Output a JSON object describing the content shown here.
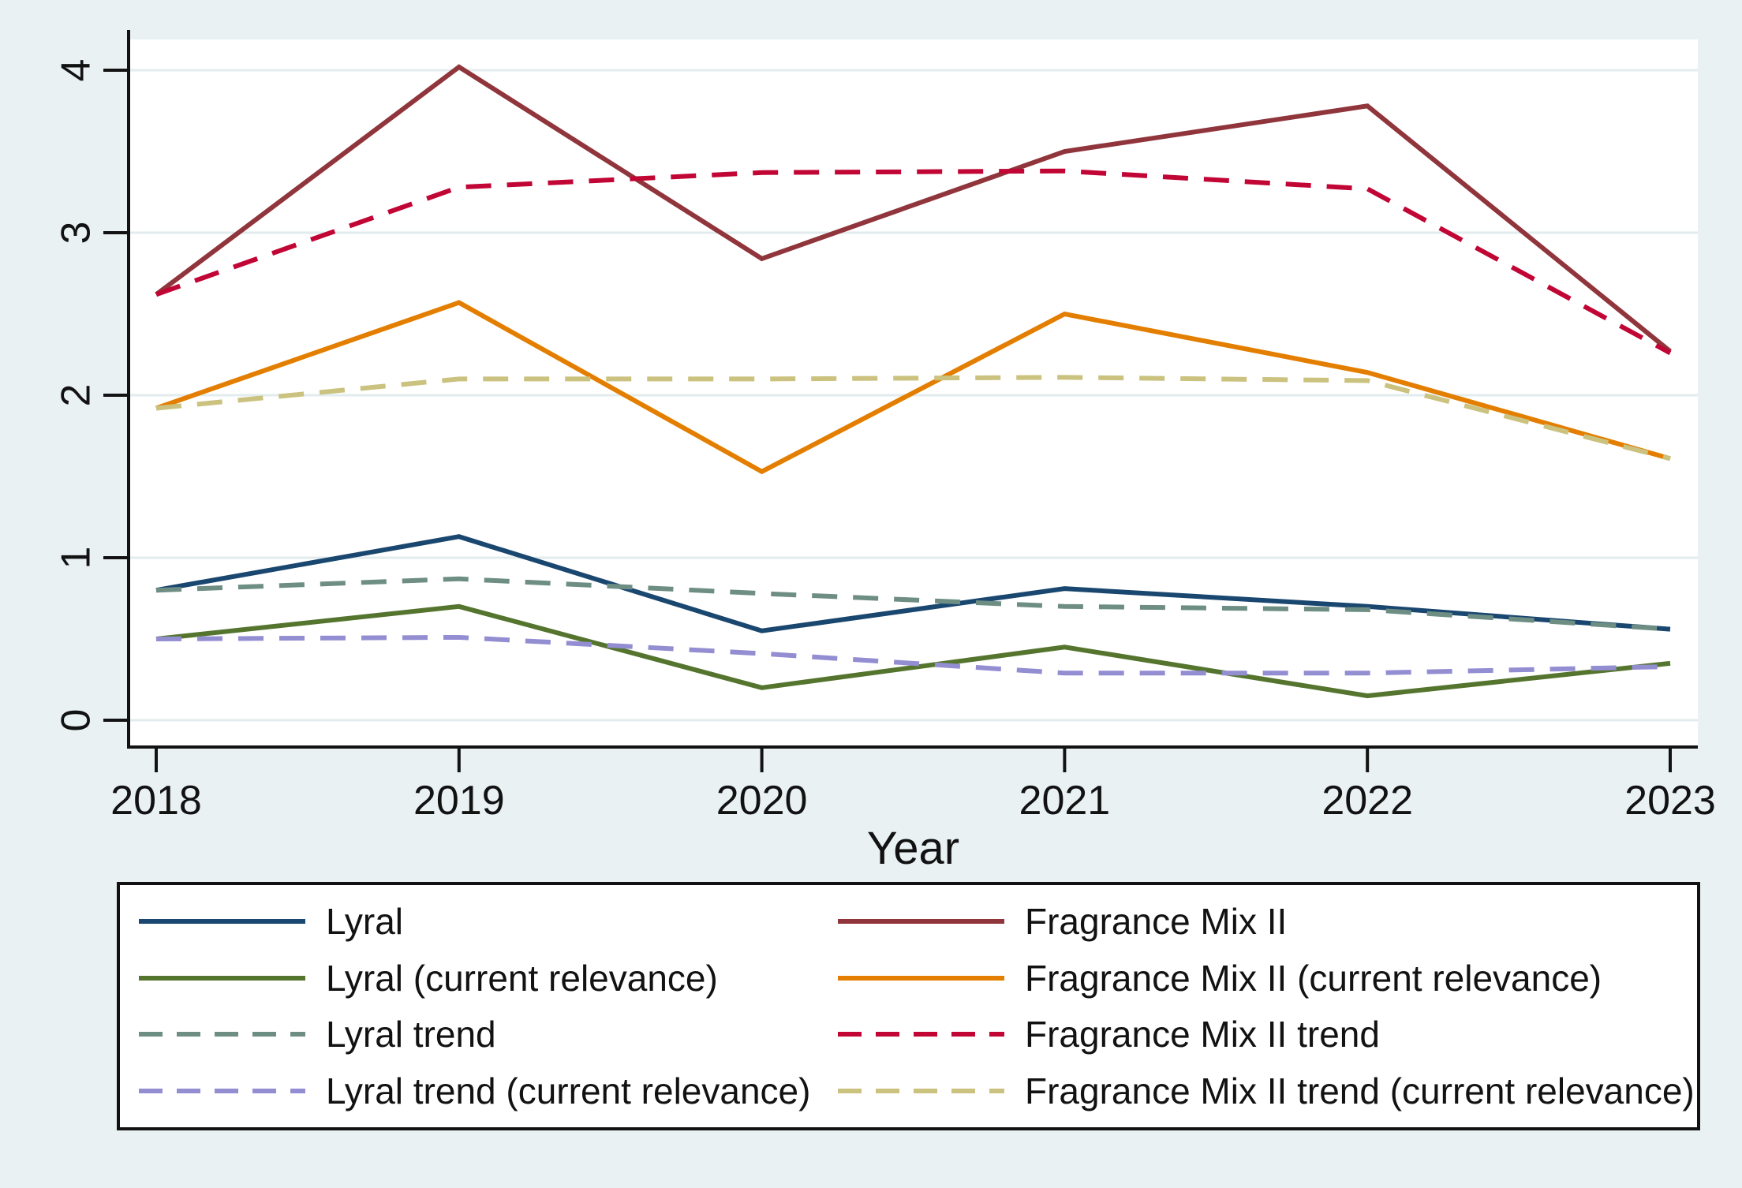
{
  "figure": {
    "background_color": "#e9f1f3",
    "panel_color": "#ffffff",
    "gridline_color": "#e2ecef",
    "axis_color": "#121212",
    "legend_border_color": "#121212",
    "legend_background": "#ffffff"
  },
  "chart_data": {
    "type": "line",
    "title": "",
    "xlabel": "Year",
    "ylabel": "",
    "x": [
      2018,
      2019,
      2020,
      2021,
      2022,
      2023
    ],
    "x_tick_labels": [
      "2018",
      "2019",
      "2020",
      "2021",
      "2022",
      "2023"
    ],
    "y_ticks": [
      0,
      1,
      2,
      3,
      4
    ],
    "y_tick_labels": [
      "0",
      "1",
      "2",
      "3",
      "4"
    ],
    "ylim": [
      0,
      4
    ],
    "grid": "horizontal",
    "legend_position": "bottom",
    "legend_columns": 2,
    "series": [
      {
        "name": "Lyral",
        "color": "#1a476f",
        "dash": false,
        "values": [
          0.8,
          1.13,
          0.55,
          0.81,
          0.7,
          0.56
        ]
      },
      {
        "name": "Lyral (current relevance)",
        "color": "#55752f",
        "dash": false,
        "values": [
          0.5,
          0.7,
          0.2,
          0.45,
          0.15,
          0.35
        ]
      },
      {
        "name": "Lyral trend",
        "color": "#6e8e84",
        "dash": true,
        "values": [
          0.8,
          0.87,
          0.78,
          0.7,
          0.68,
          0.56
        ]
      },
      {
        "name": "Lyral trend (current relevance)",
        "color": "#938dd2",
        "dash": true,
        "values": [
          0.5,
          0.51,
          0.41,
          0.29,
          0.29,
          0.33
        ]
      },
      {
        "name": "Fragrance Mix II",
        "color": "#90353b",
        "dash": false,
        "values": [
          2.62,
          4.02,
          2.84,
          3.5,
          3.78,
          2.27
        ]
      },
      {
        "name": "Fragrance Mix II (current relevance)",
        "color": "#e37e00",
        "dash": false,
        "values": [
          1.92,
          2.57,
          1.53,
          2.5,
          2.14,
          1.61
        ]
      },
      {
        "name": "Fragrance Mix II trend",
        "color": "#c10534",
        "dash": true,
        "values": [
          2.62,
          3.28,
          3.37,
          3.38,
          3.27,
          2.26
        ]
      },
      {
        "name": "Fragrance Mix II trend (current relevance)",
        "color": "#cac27e",
        "dash": true,
        "values": [
          1.92,
          2.1,
          2.1,
          2.11,
          2.09,
          1.61
        ]
      }
    ]
  }
}
